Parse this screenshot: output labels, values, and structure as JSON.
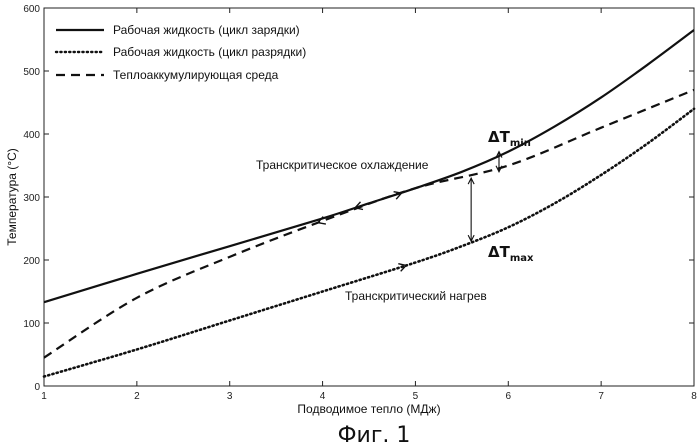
{
  "chart_data": {
    "type": "line",
    "xlabel": "Подводимое тепло (МДж)",
    "ylabel": "Температура (°C)",
    "xlim": [
      1,
      8
    ],
    "ylim": [
      0,
      600
    ],
    "x_ticks": [
      1,
      2,
      3,
      4,
      5,
      6,
      7,
      8
    ],
    "y_ticks": [
      0,
      100,
      200,
      300,
      400,
      500,
      600
    ],
    "grid": false,
    "legend_position": "top-left",
    "series": [
      {
        "name": "Рабочая жидкость (цикл зарядки)",
        "style": "solid",
        "x": [
          1,
          2,
          3,
          4,
          4.5,
          5,
          5.5,
          6,
          6.5,
          7,
          7.5,
          8
        ],
        "y": [
          133,
          178,
          222,
          266,
          290,
          314,
          340,
          372,
          412,
          458,
          510,
          565
        ]
      },
      {
        "name": "Рабочая жидкость (цикл разрядки)",
        "style": "dotted",
        "x": [
          1,
          2,
          3,
          4,
          5,
          5.5,
          6,
          6.5,
          7,
          7.5,
          8
        ],
        "y": [
          15,
          58,
          104,
          150,
          196,
          222,
          252,
          290,
          335,
          385,
          440
        ]
      },
      {
        "name": "Теплоаккумулирующая среда",
        "style": "dashed",
        "x": [
          1,
          2,
          3,
          4,
          5,
          6,
          7,
          8
        ],
        "y": [
          45,
          140,
          205,
          262,
          314,
          350,
          410,
          470
        ]
      }
    ],
    "annotations": {
      "delta_t_min": {
        "symbol": "ΔT",
        "subscript": "min",
        "x": 5.9,
        "y_top": 372,
        "y_bottom": 340
      },
      "delta_t_max": {
        "symbol": "ΔT",
        "subscript": "max",
        "x": 5.6,
        "y_top": 330,
        "y_bottom": 230
      },
      "cooling_label": "Транскритическое охлаждение",
      "heating_label": "Транскритический нагрев"
    },
    "direction_arrows": [
      {
        "series": 0,
        "x_from": 4.75,
        "x_to": 4.35
      },
      {
        "series": 2,
        "x_from": 4.45,
        "x_to": 4.85
      },
      {
        "series": 2,
        "x_from": 4.35,
        "x_to": 3.95
      },
      {
        "series": 1,
        "x_from": 4.65,
        "x_to": 4.9
      }
    ],
    "caption": "Фиг. 1"
  }
}
